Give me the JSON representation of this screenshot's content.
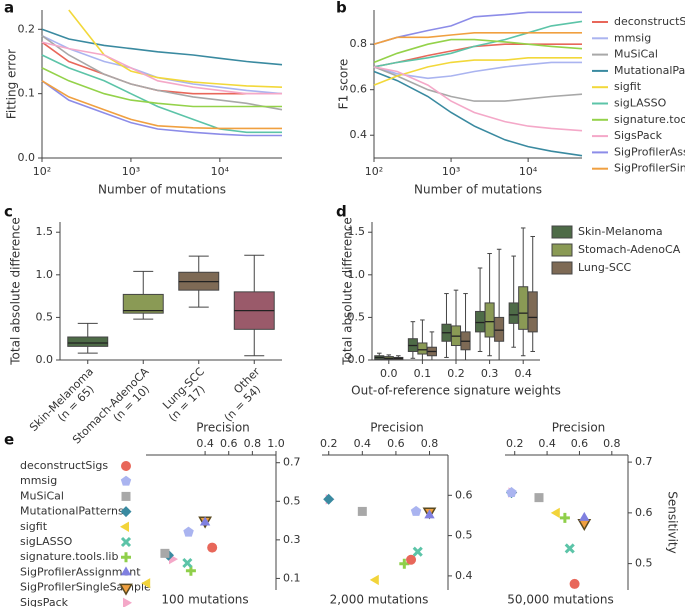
{
  "chart_data": [
    {
      "type": "line",
      "log_x": true,
      "xlabel": "Number of mutations",
      "x": [
        100,
        200,
        500,
        1000,
        2000,
        5000,
        10000,
        20000,
        50000
      ],
      "xlim": [
        100,
        50000
      ],
      "xticks": [
        {
          "value": 100,
          "label": "10²"
        },
        {
          "value": 1000,
          "label": "10³"
        },
        {
          "value": 10000,
          "label": "10⁴"
        }
      ],
      "series": [
        {
          "name": "deconstructSigs",
          "color": "#e8675a"
        },
        {
          "name": "mmsig",
          "color": "#aab4f0"
        },
        {
          "name": "MuSiCal",
          "color": "#a8a8a8"
        },
        {
          "name": "MutationalPatterns",
          "color": "#3a8aa0"
        },
        {
          "name": "sigfit",
          "color": "#f2d83a"
        },
        {
          "name": "sigLASSO",
          "color": "#5cc4a8"
        },
        {
          "name": "signature.tools.lib",
          "color": "#94d24a"
        },
        {
          "name": "SigsPack",
          "color": "#f4a8c8"
        },
        {
          "name": "SigProfilerAssignment",
          "color": "#8c8ce8"
        },
        {
          "name": "SigProfilerSingleSample",
          "color": "#f0a040"
        }
      ],
      "panels": [
        {
          "panel_label": "a",
          "ylabel": "Fitting error",
          "ylim": [
            0,
            0.23
          ],
          "yticks": [
            {
              "value": 0,
              "label": "0.0"
            },
            0.1,
            0.2
          ],
          "values": [
            [
              0.18,
              0.15,
              0.13,
              0.115,
              0.105,
              0.1,
              0.1,
              0.1,
              0.1
            ],
            [
              0.19,
              0.17,
              0.15,
              0.14,
              0.125,
              0.115,
              0.11,
              0.105,
              0.1
            ],
            [
              0.19,
              0.16,
              0.13,
              0.115,
              0.105,
              0.095,
              0.09,
              0.085,
              0.075
            ],
            [
              0.2,
              0.185,
              0.175,
              0.17,
              0.165,
              0.16,
              0.155,
              0.15,
              0.145
            ],
            [
              null,
              0.23,
              0.16,
              0.135,
              0.125,
              0.118,
              0.115,
              0.112,
              0.11
            ],
            [
              0.16,
              0.14,
              0.12,
              0.1,
              0.08,
              0.06,
              0.045,
              0.04,
              0.04
            ],
            [
              0.14,
              0.12,
              0.1,
              0.09,
              0.085,
              0.08,
              0.08,
              0.08,
              0.08
            ],
            [
              0.18,
              0.17,
              0.16,
              0.14,
              0.12,
              0.11,
              0.105,
              0.1,
              0.1
            ],
            [
              0.12,
              0.09,
              0.07,
              0.055,
              0.045,
              0.04,
              0.037,
              0.035,
              0.035
            ],
            [
              0.12,
              0.095,
              0.075,
              0.06,
              0.05,
              0.047,
              0.046,
              0.046,
              0.046
            ]
          ]
        },
        {
          "panel_label": "b",
          "ylabel": "F1 score",
          "ylim": [
            0.3,
            0.95
          ],
          "yticks": [
            0.4,
            0.6,
            0.8
          ],
          "legend": "outside-right",
          "values": [
            [
              0.7,
              0.72,
              0.75,
              0.77,
              0.79,
              0.8,
              0.8,
              0.8,
              0.8
            ],
            [
              0.7,
              0.67,
              0.65,
              0.66,
              0.68,
              0.7,
              0.71,
              0.72,
              0.72
            ],
            [
              0.7,
              0.66,
              0.6,
              0.57,
              0.55,
              0.55,
              0.56,
              0.57,
              0.58
            ],
            [
              0.68,
              0.64,
              0.57,
              0.5,
              0.44,
              0.38,
              0.35,
              0.33,
              0.31
            ],
            [
              0.62,
              0.66,
              0.7,
              0.72,
              0.73,
              0.73,
              0.74,
              0.74,
              0.74
            ],
            [
              0.7,
              0.72,
              0.74,
              0.76,
              0.79,
              0.82,
              0.85,
              0.88,
              0.9
            ],
            [
              0.72,
              0.76,
              0.8,
              0.82,
              0.82,
              0.81,
              0.8,
              0.79,
              0.78
            ],
            [
              0.7,
              0.68,
              0.62,
              0.55,
              0.5,
              0.46,
              0.44,
              0.43,
              0.42
            ],
            [
              0.8,
              0.83,
              0.86,
              0.88,
              0.92,
              0.93,
              0.94,
              0.94,
              0.94
            ],
            [
              0.8,
              0.83,
              0.83,
              0.84,
              0.85,
              0.85,
              0.85,
              0.85,
              0.85
            ]
          ]
        }
      ]
    },
    {
      "type": "box",
      "panel_label": "c",
      "ylabel": "Total absolute difference",
      "ylim": [
        0,
        1.62
      ],
      "yticks": [
        {
          "value": 0,
          "label": "0.0"
        },
        0.5,
        {
          "value": 1,
          "label": "1.0"
        },
        1.5
      ],
      "categories": [
        "Skin-Melanoma",
        "Stomach-AdenoCA",
        "Lung-SCC",
        "Other"
      ],
      "category_notes": [
        "(n = 65)",
        "(n = 10)",
        "(n = 17)",
        "(n = 54)"
      ],
      "colors": [
        "#4e6b47",
        "#8a9a55",
        "#7e6a55",
        "#9a5a6a"
      ],
      "boxes": [
        {
          "min": 0.08,
          "q1": 0.16,
          "median": 0.2,
          "q3": 0.27,
          "max": 0.43
        },
        {
          "min": 0.48,
          "q1": 0.55,
          "median": 0.58,
          "q3": 0.77,
          "max": 1.04
        },
        {
          "min": 0.62,
          "q1": 0.82,
          "median": 0.92,
          "q3": 1.03,
          "max": 1.22
        },
        {
          "min": 0.05,
          "q1": 0.36,
          "median": 0.58,
          "q3": 0.8,
          "max": 1.23
        }
      ]
    },
    {
      "type": "box",
      "panel_label": "d",
      "ylabel": "Total absolute difference",
      "xlabel": "Out-of-reference signature weights",
      "ylim": [
        0,
        1.62
      ],
      "yticks": [
        {
          "value": 0,
          "label": "0.0"
        },
        0.5,
        {
          "value": 1,
          "label": "1.0"
        },
        1.5
      ],
      "categories": [
        "0.0",
        "0.1",
        "0.2",
        "0.3",
        "0.4"
      ],
      "legend": "outside-right",
      "series": [
        {
          "name": "Skin-Melanoma",
          "color": "#4e6b47",
          "boxes": [
            {
              "min": 0,
              "q1": 0.01,
              "median": 0.03,
              "q3": 0.05,
              "max": 0.08
            },
            {
              "min": 0.02,
              "q1": 0.1,
              "median": 0.17,
              "q3": 0.25,
              "max": 0.45
            },
            {
              "min": 0.03,
              "q1": 0.22,
              "median": 0.32,
              "q3": 0.42,
              "max": 0.78
            },
            {
              "min": 0.1,
              "q1": 0.33,
              "median": 0.44,
              "q3": 0.57,
              "max": 1.08
            },
            {
              "min": 0.15,
              "q1": 0.43,
              "median": 0.53,
              "q3": 0.67,
              "max": 1.22
            }
          ]
        },
        {
          "name": "Stomach-AdenoCA",
          "color": "#8a9a55",
          "boxes": [
            {
              "min": 0,
              "q1": 0.01,
              "median": 0.02,
              "q3": 0.04,
              "max": 0.06
            },
            {
              "min": 0,
              "q1": 0.07,
              "median": 0.12,
              "q3": 0.2,
              "max": 0.47
            },
            {
              "min": 0,
              "q1": 0.17,
              "median": 0.28,
              "q3": 0.4,
              "max": 0.82
            },
            {
              "min": 0.05,
              "q1": 0.27,
              "median": 0.45,
              "q3": 0.67,
              "max": 1.25
            },
            {
              "min": 0.05,
              "q1": 0.36,
              "median": 0.55,
              "q3": 0.86,
              "max": 1.55
            }
          ]
        },
        {
          "name": "Lung-SCC",
          "color": "#7e6a55",
          "boxes": [
            {
              "min": 0,
              "q1": 0.005,
              "median": 0.02,
              "q3": 0.03,
              "max": 0.05
            },
            {
              "min": 0,
              "q1": 0.05,
              "median": 0.1,
              "q3": 0.15,
              "max": 0.33
            },
            {
              "min": 0,
              "q1": 0.12,
              "median": 0.22,
              "q3": 0.33,
              "max": 0.78
            },
            {
              "min": 0,
              "q1": 0.22,
              "median": 0.35,
              "q3": 0.5,
              "max": 1.3
            },
            {
              "min": 0.1,
              "q1": 0.33,
              "median": 0.5,
              "q3": 0.8,
              "max": 1.45
            }
          ]
        }
      ]
    },
    {
      "type": "scatter",
      "panel_label": "e",
      "xlabel": "Precision",
      "ylabel": "Sensitivity",
      "legend": "outside-left",
      "series": [
        {
          "name": "deconstructSigs",
          "color": "#e8675a",
          "marker": "circle"
        },
        {
          "name": "mmsig",
          "color": "#aab4f0",
          "marker": "pentagon"
        },
        {
          "name": "MuSiCal",
          "color": "#a8a8a8",
          "marker": "square"
        },
        {
          "name": "MutationalPatterns",
          "color": "#3a8aa0",
          "marker": "diamond"
        },
        {
          "name": "sigfit",
          "color": "#f2d43a",
          "marker": "triangle-left"
        },
        {
          "name": "sigLASSO",
          "color": "#5cc4a8",
          "marker": "x"
        },
        {
          "name": "signature.tools.lib",
          "color": "#8fcf4a",
          "marker": "plus"
        },
        {
          "name": "SigProfilerAssignment",
          "color": "#8080e0",
          "marker": "triangle-up"
        },
        {
          "name": "SigProfilerSingleSample",
          "color": "#f0a040",
          "marker": "triangle-down",
          "edgecolor": "#5a4a20"
        },
        {
          "name": "SigsPack",
          "color": "#f4a8c8",
          "marker": "triangle-right"
        }
      ],
      "subplots": [
        {
          "title": "100 mutations",
          "xlim": [
            -0.1,
            1.0
          ],
          "ylim": [
            0.04,
            0.74
          ],
          "xticks": [
            0.4,
            0.6,
            0.8,
            {
              "value": 1,
              "label": "1.0"
            }
          ],
          "yticks": [
            0.1,
            0.3,
            0.5,
            0.7
          ],
          "x": [
            0.46,
            0.26,
            0.06,
            0.09,
            -0.09,
            0.25,
            0.28,
            0.4,
            0.4,
            0.12
          ],
          "y": [
            0.26,
            0.34,
            0.23,
            0.22,
            0.075,
            0.18,
            0.14,
            0.39,
            0.4,
            0.2
          ]
        },
        {
          "title": "2,000 mutations",
          "xlim": [
            0.16,
            0.91
          ],
          "ylim": [
            0.365,
            0.7
          ],
          "xticks": [
            0.2,
            0.4,
            0.6,
            0.8
          ],
          "yticks": [
            0.4,
            0.5,
            0.6
          ],
          "x": [
            0.69,
            0.72,
            0.4,
            0.2,
            0.48,
            0.73,
            0.65,
            0.8,
            0.8,
            0.2
          ],
          "y": [
            0.44,
            0.56,
            0.56,
            0.59,
            0.39,
            0.46,
            0.43,
            0.55,
            0.56,
            0.59
          ]
        },
        {
          "title": "50,000 mutations",
          "xlim": [
            0.14,
            0.9
          ],
          "ylim": [
            0.448,
            0.714
          ],
          "xticks": [
            0.2,
            0.4,
            0.6,
            0.8
          ],
          "yticks": [
            0.5,
            0.6,
            0.7
          ],
          "x": [
            0.57,
            0.18,
            0.35,
            0.18,
            0.46,
            0.54,
            0.51,
            0.63,
            0.63,
            0.18
          ],
          "y": [
            0.46,
            0.64,
            0.63,
            0.64,
            0.6,
            0.53,
            0.59,
            0.59,
            0.58,
            0.64
          ]
        }
      ]
    }
  ]
}
